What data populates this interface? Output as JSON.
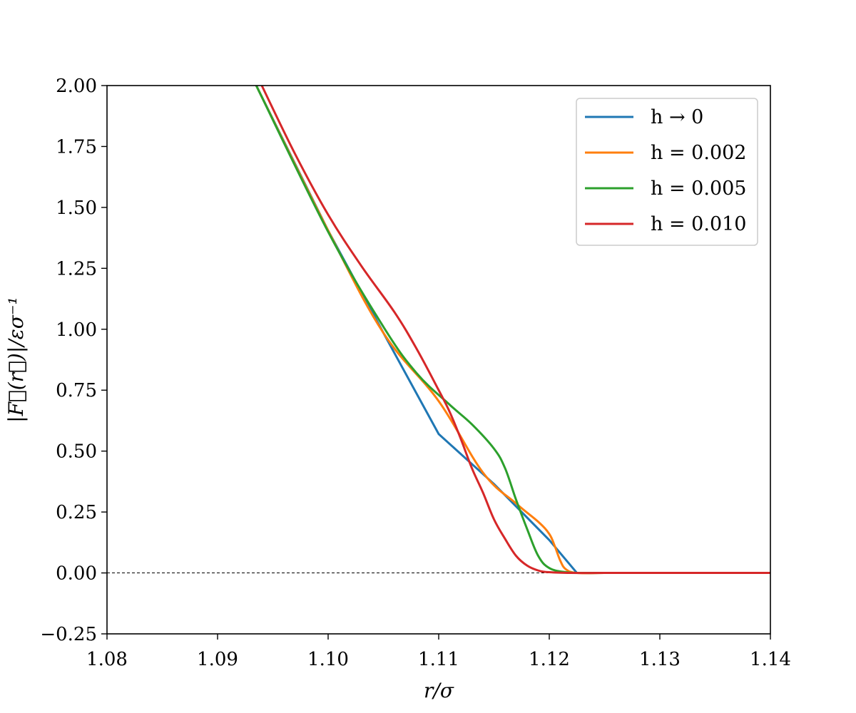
{
  "chart_data": {
    "type": "line",
    "title": "",
    "xlabel": "r/σ",
    "ylabel": "|F⃗(r⃗)|/εσ⁻¹",
    "xlim": [
      1.08,
      1.14
    ],
    "ylim": [
      -0.25,
      2.0
    ],
    "xticks": [
      1.08,
      1.09,
      1.1,
      1.11,
      1.12,
      1.13,
      1.14
    ],
    "xtick_labels": [
      "1.08",
      "1.09",
      "1.10",
      "1.11",
      "1.12",
      "1.13",
      "1.14"
    ],
    "yticks": [
      -0.25,
      0.0,
      0.25,
      0.5,
      0.75,
      1.0,
      1.25,
      1.5,
      1.75,
      2.0
    ],
    "ytick_labels": [
      "−0.25",
      "0.00",
      "0.25",
      "0.50",
      "0.75",
      "1.00",
      "1.25",
      "1.50",
      "1.75",
      "2.00"
    ],
    "grid": false,
    "legend_position": "top-right",
    "reference_line": {
      "y": 0.0,
      "style": "dashed",
      "color": "#000000"
    },
    "series": [
      {
        "name": "h → 0",
        "color": "#1f77b4",
        "x": [
          1.0935,
          1.1,
          1.105,
          1.11,
          1.115,
          1.12,
          1.1225,
          1.125,
          1.13,
          1.135,
          1.14
        ],
        "y": [
          2.0,
          1.405,
          0.985,
          0.57,
          0.365,
          0.135,
          0.0,
          0.0,
          0.0,
          0.0,
          0.0
        ]
      },
      {
        "name": "h = 0.002",
        "color": "#ff7f0e",
        "x": [
          1.0935,
          1.1,
          1.105,
          1.11,
          1.114,
          1.117,
          1.119,
          1.12,
          1.1205,
          1.121,
          1.1215,
          1.1225,
          1.125,
          1.13,
          1.14
        ],
        "y": [
          2.0,
          1.405,
          0.985,
          0.705,
          0.412,
          0.285,
          0.21,
          0.16,
          0.11,
          0.05,
          0.015,
          0.0,
          0.0,
          0.0,
          0.0
        ],
        "note": ""
      },
      {
        "name": "h = 0.005",
        "color": "#2ca02c",
        "x": [
          1.0935,
          1.1,
          1.105,
          1.108,
          1.111,
          1.113,
          1.115,
          1.116,
          1.117,
          1.118,
          1.119,
          1.12,
          1.1215,
          1.123,
          1.125,
          1.13,
          1.14
        ],
        "y": [
          2.0,
          1.4,
          1.01,
          0.82,
          0.69,
          0.61,
          0.51,
          0.43,
          0.3,
          0.18,
          0.07,
          0.02,
          0.003,
          0.0,
          0.0,
          0.0,
          0.0
        ]
      },
      {
        "name": "h = 0.010",
        "color": "#d62728",
        "x": [
          1.094,
          1.097,
          1.1,
          1.103,
          1.106,
          1.108,
          1.11,
          1.111,
          1.112,
          1.113,
          1.114,
          1.115,
          1.116,
          1.117,
          1.118,
          1.119,
          1.12,
          1.122,
          1.125,
          1.13,
          1.14
        ],
        "y": [
          2.0,
          1.72,
          1.47,
          1.26,
          1.07,
          0.92,
          0.75,
          0.66,
          0.55,
          0.43,
          0.33,
          0.22,
          0.14,
          0.07,
          0.03,
          0.01,
          0.003,
          0.0,
          0.0,
          0.0,
          0.0
        ]
      }
    ]
  }
}
